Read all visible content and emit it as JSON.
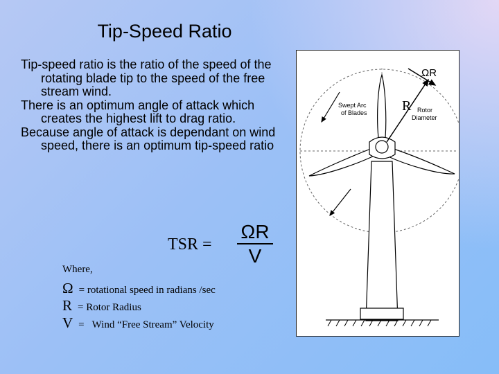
{
  "slide": {
    "title": "Tip-Speed Ratio",
    "bullets": [
      "Tip-speed ratio is the ratio of the speed of the rotating blade tip to the speed of the free stream wind.",
      "There is an optimum angle of attack which creates the highest lift to drag ratio.",
      "Because angle of attack is dependant on wind speed, there is an optimum tip-speed ratio"
    ]
  },
  "formula": {
    "lhs": "TSR =",
    "numerator": "ΩR",
    "denominator": "V"
  },
  "where_label": "Where,",
  "definitions": [
    {
      "symbol": "Ω",
      "text": "= rotational speed in radians /sec"
    },
    {
      "symbol": "R",
      "text": "= Rotor Radius"
    },
    {
      "symbol": "V",
      "text": "=   Wind “Free Stream” Velocity"
    }
  ],
  "diagram": {
    "omega_r_label": "ΩR",
    "r_label": "R",
    "swept_arc_label_line1": "Swept Arc",
    "swept_arc_label_line2": "of Blades",
    "rotor_label_line1": "Rotor",
    "rotor_label_line2": "Diameter"
  }
}
